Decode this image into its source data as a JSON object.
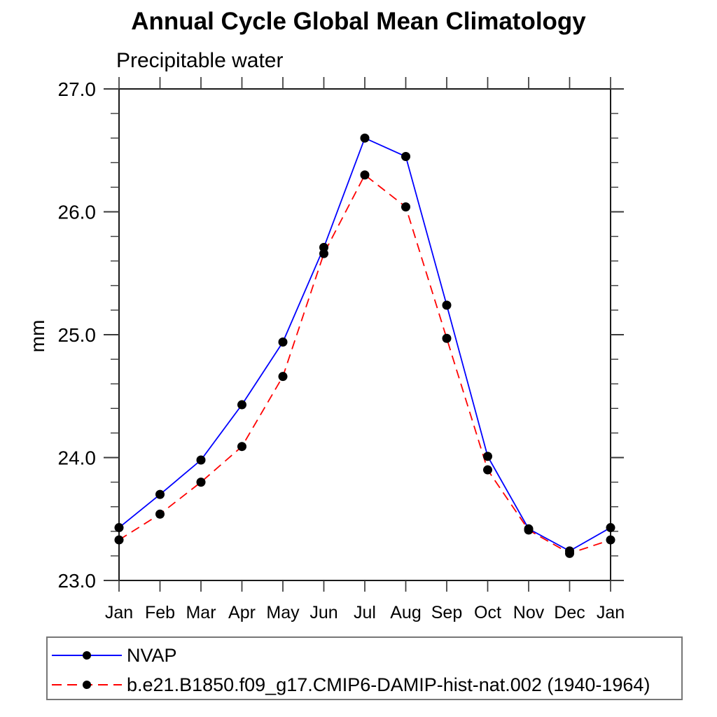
{
  "chart": {
    "window_size": "1024x1024"
  },
  "chart_data": {
    "type": "line",
    "title": "Annual Cycle Global Mean Climatology",
    "subtitle": "Precipitable water",
    "xlabel": "",
    "ylabel": "mm",
    "categories": [
      "Jan",
      "Feb",
      "Mar",
      "Apr",
      "May",
      "Jun",
      "Jul",
      "Aug",
      "Sep",
      "Oct",
      "Nov",
      "Dec",
      "Jan"
    ],
    "ylim": [
      23.0,
      27.0
    ],
    "y_ticks": [
      23.0,
      24.0,
      25.0,
      26.0,
      27.0
    ],
    "y_tick_labels": [
      "23.0",
      "24.0",
      "25.0",
      "26.0",
      "27.0"
    ],
    "y_minor_tick_interval": 0.2,
    "grid": false,
    "legend_position": "bottom",
    "frame_color": "#1a1a1a",
    "tick_color": "#3a3a3a",
    "marker_color": "#000000",
    "series": [
      {
        "name": "NVAP",
        "color": "#0000ff",
        "style": "solid",
        "marker": "circle",
        "values": [
          23.43,
          23.7,
          23.98,
          24.43,
          24.94,
          25.71,
          26.6,
          26.45,
          25.24,
          24.01,
          23.42,
          23.24,
          23.43
        ]
      },
      {
        "name": "b.e21.B1850.f09_g17.CMIP6-DAMIP-hist-nat.002 (1940-1964)",
        "color": "#ff0000",
        "style": "dashed",
        "marker": "circle",
        "values": [
          23.33,
          23.54,
          23.8,
          24.09,
          24.66,
          25.66,
          26.3,
          26.04,
          24.97,
          23.9,
          23.41,
          23.22,
          23.33
        ]
      }
    ]
  }
}
